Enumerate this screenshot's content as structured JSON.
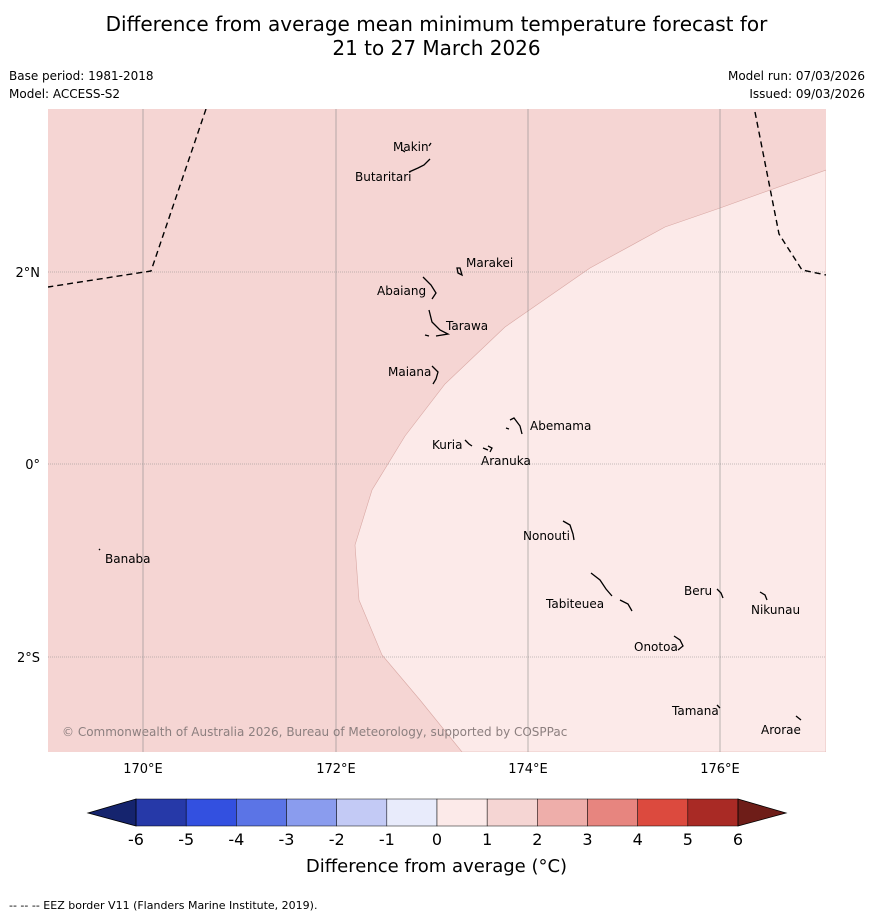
{
  "title_line1": "Difference from average mean minimum temperature forecast for",
  "title_line2": "21 to 27 March 2026",
  "base_period": "Base period: 1981-2018",
  "model": "Model: ACCESS-S2",
  "model_run": "Model run: 07/03/2026",
  "issued": "Issued: 09/03/2026",
  "copyright": "© Commonwealth of Australia 2026, Bureau of Meteorology, supported by COSPPac",
  "lat_labels": [
    "2°N",
    "0°",
    "2°S"
  ],
  "lon_labels": [
    "170°E",
    "172°E",
    "174°E",
    "176°E"
  ],
  "islands": [
    "Makin",
    "Butaritari",
    "Marakei",
    "Abaiang",
    "Tarawa",
    "Maiana",
    "Abemama",
    "Kuria",
    "Aranuka",
    "Nonouti",
    "Banaba",
    "Beru",
    "Nikunau",
    "Tabiteuea",
    "Onotoa",
    "Tamana",
    "Arorae"
  ],
  "colorbar": {
    "ticks": [
      "-6",
      "-5",
      "-4",
      "-3",
      "-2",
      "-1",
      "0",
      "1",
      "2",
      "3",
      "4",
      "5",
      "6"
    ],
    "colors": [
      "#2639a8",
      "#3350e0",
      "#5b74e6",
      "#8a9cee",
      "#c3caf5",
      "#e8ebfb",
      "#fceae9",
      "#f5d5d3",
      "#eeaeaa",
      "#e7857f",
      "#dc4a3e",
      "#a92a25"
    ],
    "low_color": "#15246e",
    "high_color": "#6e1d18",
    "label": "Difference from average (°C)"
  },
  "fill_colors": {
    "zone_1_2": "#f5d5d3",
    "zone_0_1": "#fceae9"
  },
  "footer": "--  --  -- EEZ border V11 (Flanders Marine Institute, 2019)."
}
